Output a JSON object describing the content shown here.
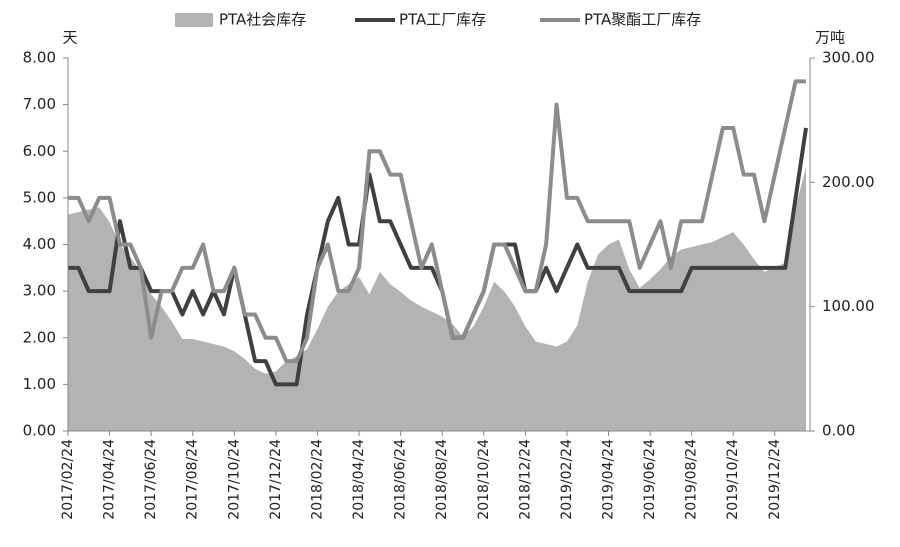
{
  "chart_data": {
    "type": "combo",
    "legend": "top",
    "y_label": "天",
    "y2_label": "万吨",
    "ylim": [
      0,
      8
    ],
    "yticks": [
      {
        "value": 0,
        "label": "0.00"
      },
      {
        "value": 1,
        "label": "1.00"
      },
      {
        "value": 2,
        "label": "2.00"
      },
      {
        "value": 3,
        "label": "3.00"
      },
      {
        "value": 4,
        "label": "4.00"
      },
      {
        "value": 5,
        "label": "5.00"
      },
      {
        "value": 6,
        "label": "6.00"
      },
      {
        "value": 7,
        "label": "7.00"
      },
      {
        "value": 8,
        "label": "8.00"
      }
    ],
    "y2lim": [
      0,
      300
    ],
    "y2ticks": [
      {
        "value": 0,
        "label": "0.00"
      },
      {
        "value": 100,
        "label": "100.00"
      },
      {
        "value": 200,
        "label": "200.00"
      },
      {
        "value": 300,
        "label": "300.00"
      }
    ],
    "categories": [
      "2017/02/24",
      null,
      null,
      null,
      "2017/04/24",
      null,
      null,
      null,
      "2017/06/24",
      null,
      null,
      null,
      "2017/08/24",
      null,
      null,
      null,
      "2017/10/24",
      null,
      null,
      null,
      "2017/12/24",
      null,
      null,
      null,
      "2018/02/24",
      null,
      null,
      null,
      "2018/04/24",
      null,
      null,
      null,
      "2018/06/24",
      null,
      null,
      null,
      "2018/08/24",
      null,
      null,
      null,
      "2018/10/24",
      null,
      null,
      null,
      "2018/12/24",
      null,
      null,
      null,
      "2019/02/24",
      null,
      null,
      null,
      "2019/04/24",
      null,
      null,
      null,
      "2019/06/24",
      null,
      null,
      null,
      "2019/08/24",
      null,
      null,
      null,
      "2019/10/24",
      null,
      null,
      null,
      "2019/12/24",
      null,
      null,
      null
    ],
    "series": [
      {
        "name": "PTA社会库存",
        "type": "area",
        "axis": "y2",
        "color": "#b3b3b3",
        "values": [
          174,
          176,
          178,
          180,
          168,
          150,
          140,
          128,
          110,
          100,
          88,
          74,
          74,
          72,
          70,
          68,
          64,
          58,
          50,
          46,
          48,
          56,
          60,
          66,
          82,
          100,
          112,
          118,
          124,
          110,
          128,
          118,
          112,
          105,
          100,
          96,
          92,
          86,
          76,
          84,
          100,
          120,
          112,
          100,
          84,
          72,
          70,
          68,
          72,
          85,
          120,
          142,
          150,
          154,
          130,
          115,
          122,
          130,
          140,
          146,
          148,
          150,
          152,
          156,
          160,
          150,
          138,
          128,
          132,
          135,
          180,
          212
        ]
      },
      {
        "name": "PTA工厂库存",
        "type": "line",
        "color": "#404040",
        "values": [
          3.5,
          3.5,
          3.0,
          3.0,
          3.0,
          4.5,
          3.5,
          3.5,
          3.0,
          3.0,
          3.0,
          2.5,
          3.0,
          2.5,
          3.0,
          2.5,
          3.5,
          2.5,
          1.5,
          1.5,
          1.0,
          1.0,
          1.0,
          2.5,
          3.5,
          4.5,
          5.0,
          4.0,
          4.0,
          5.5,
          4.5,
          4.5,
          4.0,
          3.5,
          3.5,
          3.5,
          3.0,
          2.0,
          2.0,
          2.5,
          3.0,
          4.0,
          4.0,
          4.0,
          3.0,
          3.0,
          3.5,
          3.0,
          3.5,
          4.0,
          3.5,
          3.5,
          3.5,
          3.5,
          3.0,
          3.0,
          3.0,
          3.0,
          3.0,
          3.0,
          3.5,
          3.5,
          3.5,
          3.5,
          3.5,
          3.5,
          3.5,
          3.5,
          3.5,
          3.5,
          5.0,
          6.5
        ]
      },
      {
        "name": "PTA聚酯工厂库存",
        "type": "line",
        "color": "#8c8c8c",
        "values": [
          5.0,
          5.0,
          4.5,
          5.0,
          5.0,
          4.0,
          4.0,
          3.5,
          2.0,
          3.0,
          3.0,
          3.5,
          3.5,
          4.0,
          3.0,
          3.0,
          3.5,
          2.5,
          2.5,
          2.0,
          2.0,
          1.5,
          1.5,
          2.0,
          3.5,
          4.0,
          3.0,
          3.0,
          3.5,
          6.0,
          6.0,
          5.5,
          5.5,
          4.5,
          3.5,
          4.0,
          3.0,
          2.0,
          2.0,
          2.5,
          3.0,
          4.0,
          4.0,
          3.5,
          3.0,
          3.0,
          4.0,
          7.0,
          5.0,
          5.0,
          4.5,
          4.5,
          4.5,
          4.5,
          4.5,
          3.5,
          4.0,
          4.5,
          3.5,
          4.5,
          4.5,
          4.5,
          5.5,
          6.5,
          6.5,
          5.5,
          5.5,
          4.5,
          5.5,
          6.5,
          7.5,
          7.5
        ]
      }
    ]
  }
}
